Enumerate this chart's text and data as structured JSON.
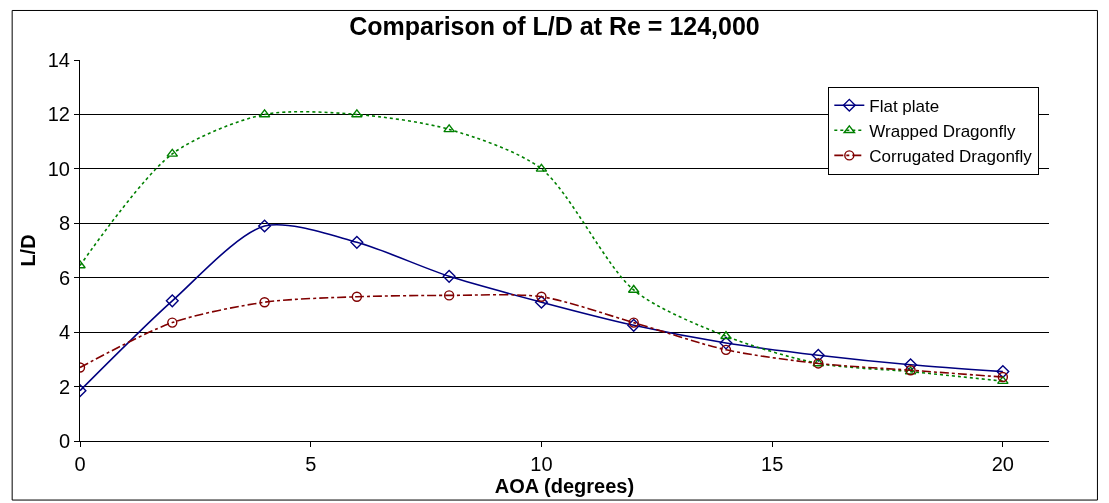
{
  "chart_data": {
    "type": "line",
    "title": "Comparison of L/D at Re = 124,000",
    "xlabel": "AOA (degrees)",
    "ylabel": "L/D",
    "x": [
      0,
      2,
      4,
      6,
      8,
      10,
      12,
      14,
      16,
      18,
      20
    ],
    "series": [
      {
        "name": "Flat plate",
        "color": "#000080",
        "marker": "diamond",
        "line_style": "solid",
        "values": [
          1.85,
          5.15,
          7.9,
          7.3,
          6.05,
          5.1,
          4.25,
          3.6,
          3.15,
          2.8,
          2.55
        ]
      },
      {
        "name": "Wrapped Dragonfly",
        "color": "#008000",
        "marker": "triangle",
        "line_style": "dotted",
        "values": [
          6.45,
          10.55,
          12.0,
          12.0,
          11.45,
          10.0,
          5.55,
          3.85,
          2.85,
          2.55,
          2.2
        ]
      },
      {
        "name": "Corrugated Dragonfly",
        "color": "#800000",
        "marker": "circle",
        "line_style": "dashed",
        "values": [
          2.7,
          4.35,
          5.1,
          5.3,
          5.35,
          5.3,
          4.35,
          3.35,
          2.85,
          2.6,
          2.35
        ]
      }
    ],
    "xlim": [
      0,
      21
    ],
    "xticks": [
      0,
      5,
      10,
      15,
      20
    ],
    "ylim": [
      0,
      14
    ],
    "yticks": [
      0,
      2,
      4,
      6,
      8,
      10,
      12,
      14
    ],
    "grid": "y",
    "legend": "top right"
  }
}
